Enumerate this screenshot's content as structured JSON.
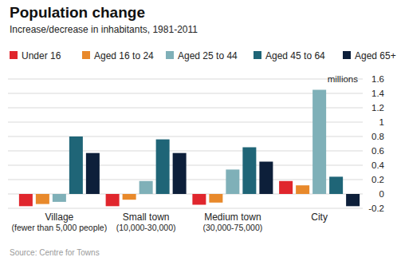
{
  "chart_data": {
    "type": "bar",
    "title": "Population change",
    "subtitle": "Increase/decrease in inhabitants, 1981-2011",
    "y_label": "millions",
    "source": "Source: Centre for Towns",
    "categories": [
      "Village\n(fewer than 5,000 people)",
      "Small town\n(10,000-30,000)",
      "Medium town\n(30,000-75,000)",
      "City"
    ],
    "series": [
      {
        "name": "Under 16",
        "color": "#e0262d",
        "values": [
          -0.17,
          -0.17,
          -0.15,
          0.18
        ]
      },
      {
        "name": "Aged 16 to 24",
        "color": "#e8892b",
        "values": [
          -0.14,
          -0.08,
          -0.12,
          0.12
        ]
      },
      {
        "name": "Aged 25 to 44",
        "color": "#7fb0b8",
        "values": [
          -0.11,
          0.18,
          0.34,
          1.45
        ]
      },
      {
        "name": "Aged 45 to 64",
        "color": "#1f6577",
        "values": [
          0.8,
          0.76,
          0.65,
          0.24
        ]
      },
      {
        "name": "Aged 65+",
        "color": "#0d1f3a",
        "values": [
          0.57,
          0.57,
          0.45,
          -0.17
        ]
      }
    ],
    "ylim": [
      -0.2,
      1.6
    ],
    "yticks": [
      -0.2,
      0,
      0.2,
      0.4,
      0.6,
      0.8,
      1,
      1.2,
      1.4,
      1.6
    ],
    "grid": true,
    "legend": "top"
  }
}
